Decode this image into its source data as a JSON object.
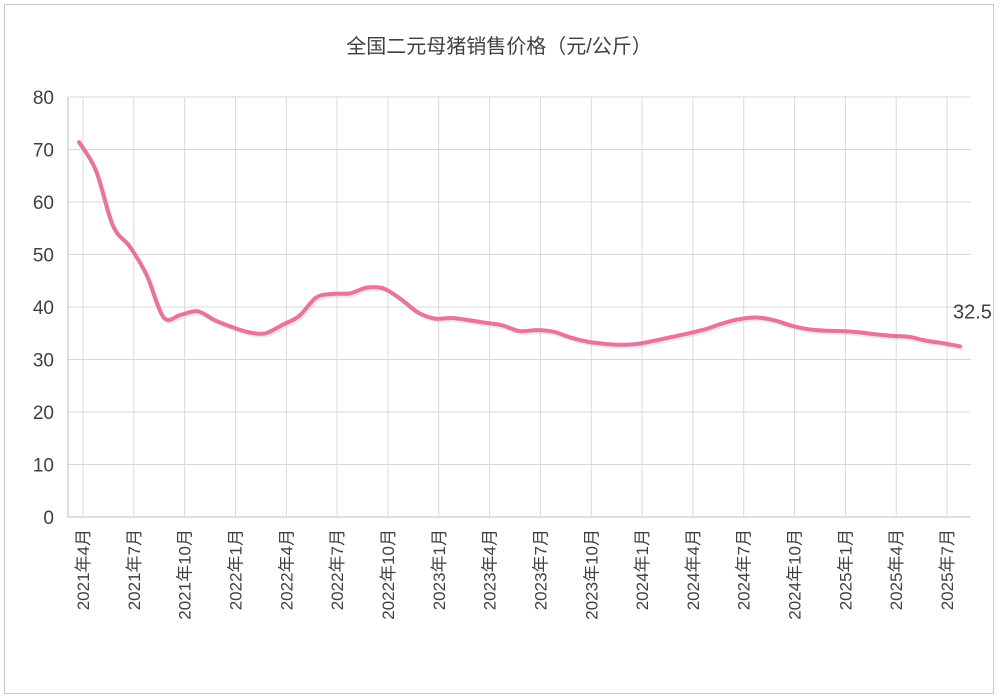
{
  "chart_data": {
    "type": "line",
    "title": "全国二元母猪销售价格（元/公斤）",
    "xlabel": "",
    "ylabel": "",
    "ylim": [
      0,
      80
    ],
    "yticks": [
      0,
      10,
      20,
      30,
      40,
      50,
      60,
      70,
      80
    ],
    "grid": true,
    "line_color": "#e8739e",
    "categories": [
      "2021年4月",
      "2021年7月",
      "2021年10月",
      "2022年1月",
      "2022年4月",
      "2022年7月",
      "2022年10月",
      "2023年1月",
      "2023年4月",
      "2023年7月",
      "2023年10月",
      "2024年1月",
      "2024年4月",
      "2024年7月",
      "2024年10月",
      "2025年1月",
      "2025年4月",
      "2025年7月"
    ],
    "series": [
      {
        "x": [
          "2021-04",
          "2021-05",
          "2021-06",
          "2021-07",
          "2021-08",
          "2021-09",
          "2021-10",
          "2021-11",
          "2021-12",
          "2022-01",
          "2022-02",
          "2022-03",
          "2022-04",
          "2022-05",
          "2022-06",
          "2022-07",
          "2022-08",
          "2022-09",
          "2022-10",
          "2022-11",
          "2022-12",
          "2023-01",
          "2023-02",
          "2023-03",
          "2023-04",
          "2023-05",
          "2023-06",
          "2023-07",
          "2023-08",
          "2023-09",
          "2023-10",
          "2023-11",
          "2023-12",
          "2024-01",
          "2024-02",
          "2024-03",
          "2024-04",
          "2024-05",
          "2024-06",
          "2024-07",
          "2024-08",
          "2024-09",
          "2024-10",
          "2024-11",
          "2024-12",
          "2025-01",
          "2025-02",
          "2025-03",
          "2025-04",
          "2025-05",
          "2025-06",
          "2025-07",
          "2025-08"
        ],
        "values": [
          71.4,
          66.0,
          55.5,
          51.5,
          46.0,
          38.0,
          38.5,
          39.2,
          37.5,
          36.2,
          35.2,
          35.0,
          36.6,
          38.3,
          41.8,
          42.5,
          42.6,
          43.7,
          43.5,
          41.5,
          39.0,
          37.8,
          37.9,
          37.5,
          37.0,
          36.5,
          35.4,
          35.6,
          35.3,
          34.2,
          33.4,
          33.0,
          32.8,
          33.0,
          33.6,
          34.3,
          35.0,
          35.8,
          36.9,
          37.7,
          38.0,
          37.5,
          36.5,
          35.8,
          35.5,
          35.4,
          35.2,
          34.8,
          34.5,
          34.3,
          33.6,
          33.1,
          32.52
        ]
      }
    ],
    "data_labels": [
      {
        "x": "2025-08",
        "text": "32.52"
      }
    ]
  }
}
